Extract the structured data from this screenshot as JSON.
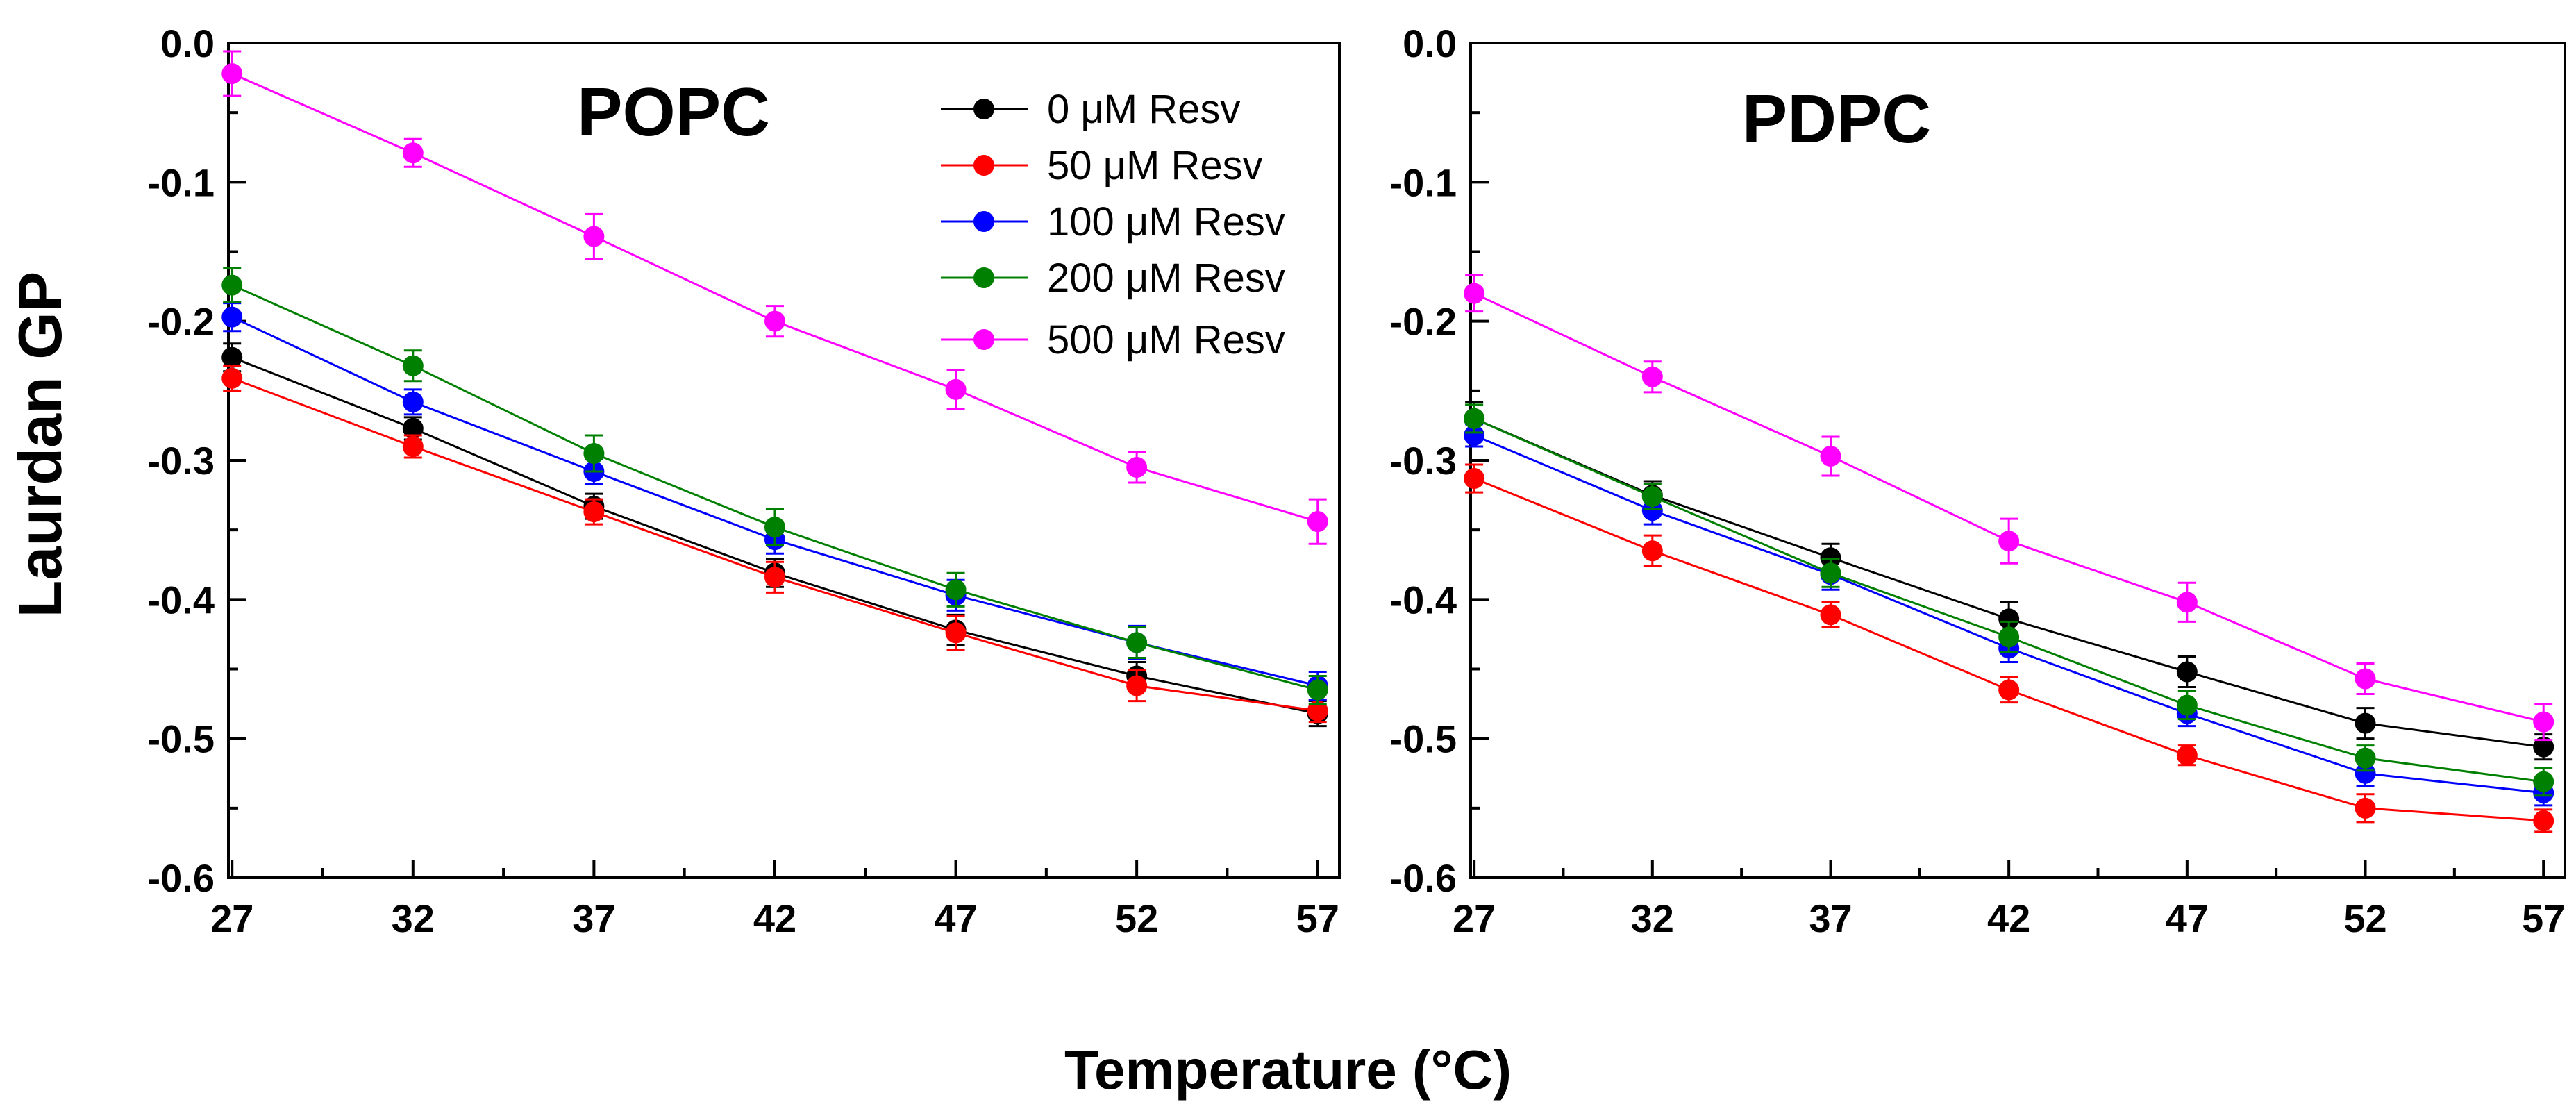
{
  "figure": {
    "shared_ylabel": "Laurdan GP",
    "shared_xlabel": "Temperature (°C)"
  },
  "legend": {
    "entries": [
      {
        "label": "0 μM Resv",
        "color": "#000000"
      },
      {
        "label": "50 μM Resv",
        "color": "#ff0000"
      },
      {
        "label": "100 μM Resv",
        "color": "#0000ff"
      },
      {
        "label": "200 μM Resv",
        "color": "#008000"
      },
      {
        "label": "500 μM Resv",
        "color": "#ff00ff"
      }
    ]
  },
  "chart_data": [
    {
      "type": "line",
      "title": "POPC",
      "xlabel": "Temperature (°C)",
      "ylabel": "Laurdan GP",
      "x": [
        27,
        32,
        37,
        42,
        47,
        52,
        57
      ],
      "xlim": [
        26.9,
        57.6
      ],
      "ylim": [
        -0.6,
        0.0
      ],
      "xticks": [
        "27",
        "32",
        "37",
        "42",
        "47",
        "52",
        "57"
      ],
      "yticks": [
        "0.0",
        "-0.1",
        "-0.2",
        "-0.3",
        "-0.4",
        "-0.5",
        "-0.6"
      ],
      "legend_position": "top-right",
      "series": [
        {
          "name": "0 μM Resv",
          "color": "#000000",
          "values": [
            -0.226,
            -0.277,
            -0.333,
            -0.381,
            -0.422,
            -0.455,
            -0.482
          ],
          "errors": [
            0.01,
            0.008,
            0.009,
            0.01,
            0.011,
            0.01,
            0.009
          ]
        },
        {
          "name": "50 μM Resv",
          "color": "#ff0000",
          "values": [
            -0.241,
            -0.29,
            -0.337,
            -0.384,
            -0.424,
            -0.462,
            -0.48
          ],
          "errors": [
            0.009,
            0.008,
            0.009,
            0.011,
            0.012,
            0.011,
            0.008
          ]
        },
        {
          "name": "100 μM Resv",
          "color": "#0000ff",
          "values": [
            -0.197,
            -0.258,
            -0.308,
            -0.357,
            -0.397,
            -0.431,
            -0.462
          ],
          "errors": [
            0.01,
            0.009,
            0.009,
            0.01,
            0.011,
            0.012,
            0.01
          ]
        },
        {
          "name": "200 μM Resv",
          "color": "#008000",
          "values": [
            -0.174,
            -0.232,
            -0.295,
            -0.348,
            -0.393,
            -0.431,
            -0.465
          ],
          "errors": [
            0.012,
            0.011,
            0.013,
            0.013,
            0.012,
            0.011,
            0.01
          ]
        },
        {
          "name": "500 μM Resv",
          "color": "#ff00ff",
          "values": [
            -0.022,
            -0.079,
            -0.139,
            -0.2,
            -0.249,
            -0.305,
            -0.344
          ],
          "errors": [
            0.016,
            0.01,
            0.016,
            0.011,
            0.014,
            0.011,
            0.016
          ]
        }
      ]
    },
    {
      "type": "line",
      "title": "PDPC",
      "xlabel": "Temperature (°C)",
      "ylabel": "Laurdan GP",
      "x": [
        27,
        32,
        37,
        42,
        47,
        52,
        57
      ],
      "xlim": [
        26.9,
        57.6
      ],
      "ylim": [
        -0.6,
        0.0
      ],
      "xticks": [
        "27",
        "32",
        "37",
        "42",
        "47",
        "52",
        "57"
      ],
      "yticks": [
        "0.0",
        "-0.1",
        "-0.2",
        "-0.3",
        "-0.4",
        "-0.5",
        "-0.6"
      ],
      "series": [
        {
          "name": "0 μM Resv",
          "color": "#000000",
          "values": [
            -0.27,
            -0.325,
            -0.37,
            -0.414,
            -0.452,
            -0.489,
            -0.506
          ],
          "errors": [
            0.012,
            0.01,
            0.01,
            0.012,
            0.011,
            0.011,
            0.009
          ]
        },
        {
          "name": "50 μM Resv",
          "color": "#ff0000",
          "values": [
            -0.313,
            -0.365,
            -0.411,
            -0.465,
            -0.512,
            -0.55,
            -0.559
          ],
          "errors": [
            0.01,
            0.011,
            0.009,
            0.009,
            0.007,
            0.01,
            0.008
          ]
        },
        {
          "name": "100 μM Resv",
          "color": "#0000ff",
          "values": [
            -0.282,
            -0.336,
            -0.382,
            -0.435,
            -0.482,
            -0.525,
            -0.539
          ],
          "errors": [
            0.008,
            0.01,
            0.011,
            0.01,
            0.009,
            0.009,
            0.009
          ]
        },
        {
          "name": "200 μM Resv",
          "color": "#008000",
          "values": [
            -0.27,
            -0.326,
            -0.381,
            -0.427,
            -0.476,
            -0.514,
            -0.531
          ],
          "errors": [
            0.01,
            0.009,
            0.01,
            0.011,
            0.01,
            0.009,
            0.01
          ]
        },
        {
          "name": "500 μM Resv",
          "color": "#ff00ff",
          "values": [
            -0.18,
            -0.24,
            -0.297,
            -0.358,
            -0.402,
            -0.457,
            -0.488
          ],
          "errors": [
            0.013,
            0.011,
            0.014,
            0.016,
            0.014,
            0.011,
            0.013
          ]
        }
      ]
    }
  ]
}
